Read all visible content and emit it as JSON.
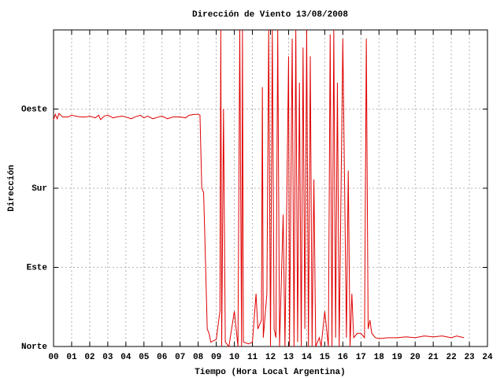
{
  "chart_data": {
    "type": "line",
    "title": "Dirección de Viento 13/08/2008",
    "xlabel": "Tiempo (Hora Local Argentina)",
    "ylabel": "Dirección",
    "xlim": [
      0,
      24
    ],
    "xticks": [
      {
        "value": 0,
        "label": "00"
      },
      {
        "value": 1,
        "label": "01"
      },
      {
        "value": 2,
        "label": "02"
      },
      {
        "value": 3,
        "label": "03"
      },
      {
        "value": 4,
        "label": "04"
      },
      {
        "value": 5,
        "label": "05"
      },
      {
        "value": 6,
        "label": "06"
      },
      {
        "value": 7,
        "label": "07"
      },
      {
        "value": 8,
        "label": "08"
      },
      {
        "value": 9,
        "label": "09"
      },
      10,
      11,
      12,
      13,
      14,
      15,
      16,
      17,
      18,
      19,
      20,
      21,
      22,
      23,
      24
    ],
    "ylim": [
      0,
      360
    ],
    "yticks": [
      {
        "value": 0,
        "label": "Norte"
      },
      {
        "value": 90,
        "label": "Este"
      },
      {
        "value": 180,
        "label": "Sur"
      },
      {
        "value": 270,
        "label": "Oeste"
      }
    ],
    "grid": true,
    "series": [
      {
        "color": "#e00000",
        "x": [
          0,
          0.1,
          0.2,
          0.3,
          0.5,
          0.8,
          1.0,
          1.2,
          1.5,
          1.8,
          2.0,
          2.3,
          2.5,
          2.6,
          2.8,
          3.0,
          3.3,
          3.5,
          3.8,
          4.0,
          4.3,
          4.5,
          4.8,
          5.0,
          5.2,
          5.5,
          5.8,
          6.0,
          6.3,
          6.6,
          7.0,
          7.3,
          7.5,
          7.8,
          8.0,
          8.1,
          8.15,
          8.2,
          8.3,
          8.4,
          8.5,
          8.6,
          8.7,
          9.0,
          9.2,
          9.25,
          9.3,
          9.4,
          9.5,
          9.7,
          10.0,
          10.2,
          10.3,
          10.4,
          10.45,
          10.5,
          10.8,
          11.0,
          11.2,
          11.3,
          11.5,
          11.55,
          11.6,
          11.8,
          11.9,
          12.0,
          12.1,
          12.2,
          12.3,
          12.4,
          12.5,
          12.7,
          12.8,
          13.0,
          13.05,
          13.2,
          13.3,
          13.4,
          13.5,
          13.6,
          13.7,
          13.8,
          13.9,
          14.0,
          14.1,
          14.2,
          14.3,
          14.4,
          14.5,
          14.7,
          14.8,
          15.0,
          15.2,
          15.3,
          15.4,
          15.5,
          15.6,
          15.7,
          15.8,
          16.0,
          16.2,
          16.3,
          16.4,
          16.5,
          16.6,
          16.8,
          17.0,
          17.2,
          17.3,
          17.35,
          17.4,
          17.5,
          17.6,
          17.8,
          18,
          18.5,
          19,
          19.5,
          20,
          20.5,
          21,
          21.5,
          22,
          22.3,
          22.7
        ],
        "values": [
          258,
          264,
          259,
          265,
          261,
          261,
          263,
          262,
          261,
          261,
          262,
          260,
          263,
          258,
          262,
          263,
          260,
          261,
          262,
          261,
          259,
          261,
          263,
          260,
          262,
          259,
          261,
          262,
          259,
          261,
          261,
          260,
          263,
          264,
          264,
          263,
          220,
          180,
          175,
          100,
          20,
          15,
          5,
          8,
          40,
          360,
          0,
          270,
          5,
          0,
          40,
          0,
          360,
          0,
          360,
          5,
          3,
          5,
          60,
          20,
          30,
          295,
          10,
          60,
          360,
          0,
          360,
          20,
          10,
          360,
          0,
          150,
          0,
          330,
          0,
          350,
          0,
          360,
          5,
          300,
          0,
          340,
          20,
          360,
          0,
          330,
          0,
          190,
          0,
          10,
          0,
          40,
          0,
          355,
          0,
          360,
          10,
          300,
          0,
          350,
          10,
          200,
          0,
          60,
          10,
          15,
          15,
          10,
          350,
          180,
          20,
          30,
          15,
          10,
          9,
          10,
          10,
          11,
          10,
          12,
          11,
          12,
          10,
          12,
          10
        ]
      }
    ]
  }
}
